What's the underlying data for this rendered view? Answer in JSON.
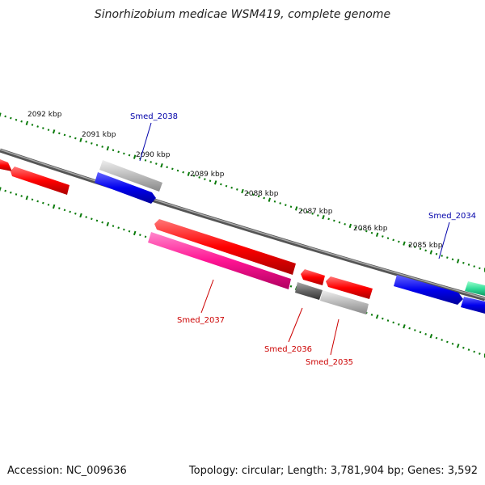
{
  "title": "Sinorhizobium medicae WSM419, complete genome",
  "footer": {
    "accession": "Accession: NC_009636",
    "stats": "Topology: circular; Length: 3,781,904 bp; Genes: 3,592"
  },
  "ruler": {
    "labels": [
      "2092 kbp",
      "2091 kbp",
      "2090 kbp",
      "2089 kbp",
      "2088 kbp",
      "2087 kbp",
      "2086 kbp",
      "2085 kbp"
    ],
    "tick_color": "#0a7a0a"
  },
  "genes": {
    "smed_2038": "Smed_2038",
    "smed_2037": "Smed_2037",
    "smed_2036": "Smed_2036",
    "smed_2035": "Smed_2035",
    "smed_2034": "Smed_2034"
  },
  "colors": {
    "forward_label": "#0000aa",
    "reverse_label": "#cc0000",
    "red": "#ff0000",
    "blue": "#0000ee",
    "pink": "#ff1493",
    "gray": "#aaaaaa",
    "dark_gray": "#666666",
    "teal": "#33dd99",
    "backbone": "#777777"
  }
}
